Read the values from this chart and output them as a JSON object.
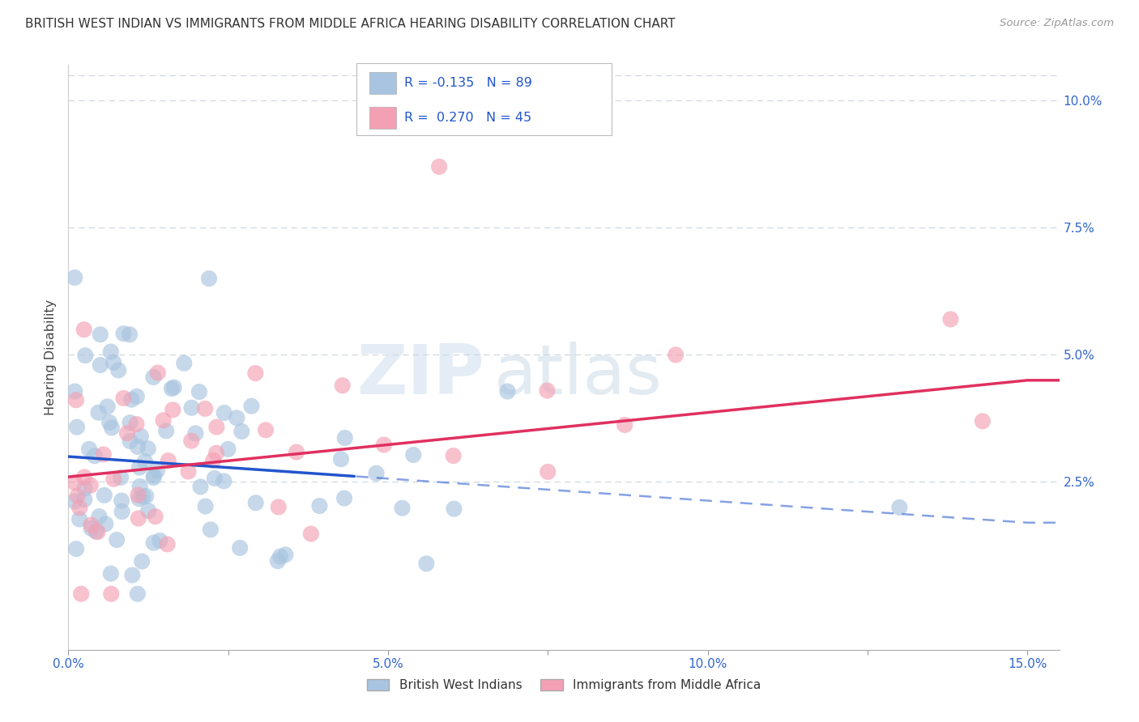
{
  "title": "BRITISH WEST INDIAN VS IMMIGRANTS FROM MIDDLE AFRICA HEARING DISABILITY CORRELATION CHART",
  "source": "Source: ZipAtlas.com",
  "ylabel": "Hearing Disability",
  "watermark_top": "ZIP",
  "watermark_bot": "atlas",
  "series1_label": "British West Indians",
  "series2_label": "Immigrants from Middle Africa",
  "series1_R": -0.135,
  "series1_N": 89,
  "series2_R": 0.27,
  "series2_N": 45,
  "series1_color": "#a8c4e0",
  "series2_color": "#f4a0b4",
  "series1_line_color": "#2255cc",
  "series2_line_color": "#e03060",
  "xlim_min": 0.0,
  "xlim_max": 0.155,
  "ylim_min": -0.008,
  "ylim_max": 0.107,
  "yticks_right": [
    0.025,
    0.05,
    0.075,
    0.1
  ],
  "ytick_labels_right": [
    "2.5%",
    "5.0%",
    "7.5%",
    "10.0%"
  ],
  "xtick_positions": [
    0.0,
    0.025,
    0.05,
    0.075,
    0.1,
    0.125,
    0.15
  ],
  "xtick_labels": [
    "0.0%",
    "",
    "5.0%",
    "",
    "10.0%",
    "",
    "15.0%"
  ],
  "background_color": "#ffffff",
  "grid_color": "#d0d8e0",
  "line1_x0": 0.0,
  "line1_y0": 0.03,
  "line1_x1": 0.15,
  "line1_y1": 0.017,
  "line1_solid_end": 0.045,
  "line2_x0": 0.0,
  "line2_y0": 0.026,
  "line2_x1": 0.15,
  "line2_y1": 0.045
}
